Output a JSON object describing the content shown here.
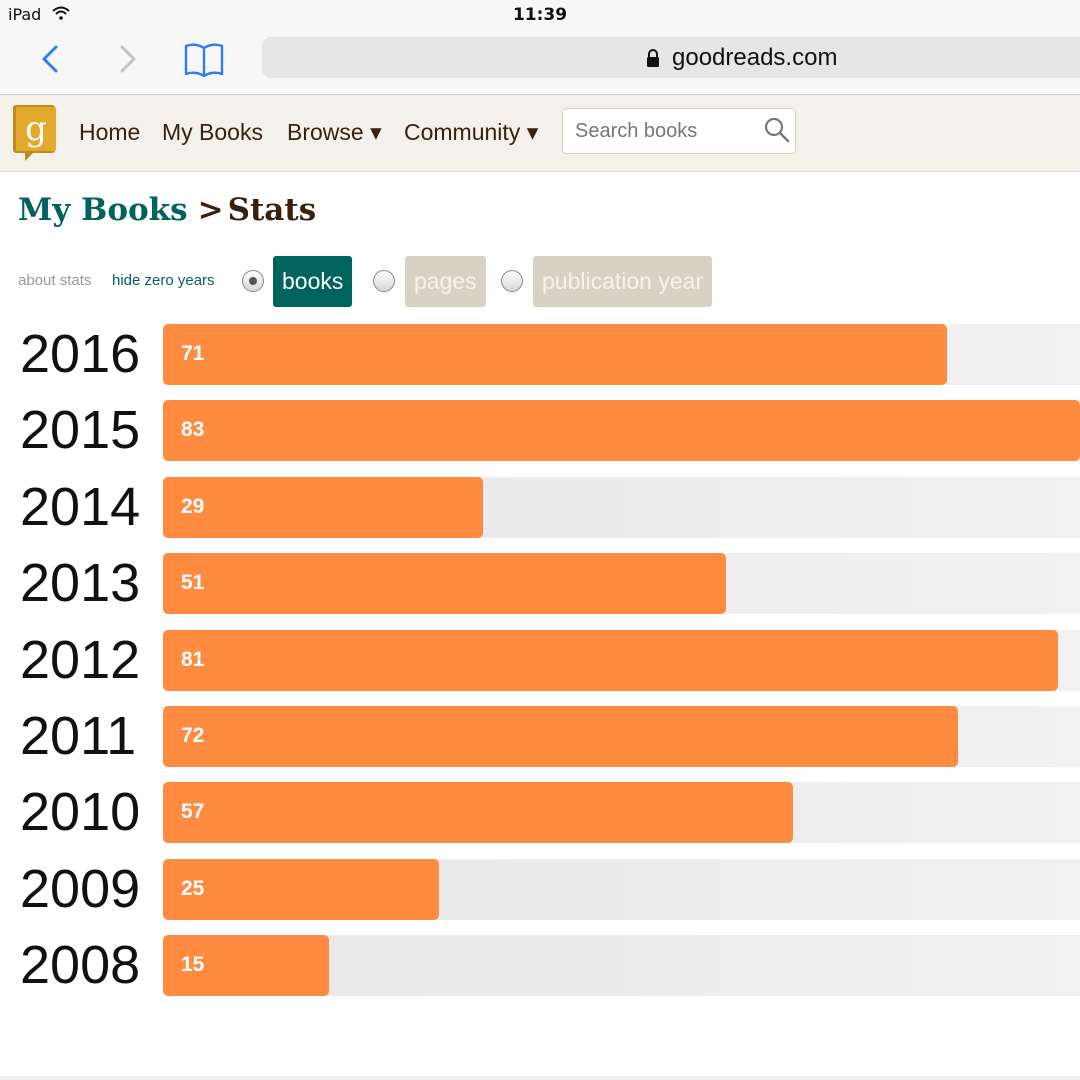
{
  "status_bar": {
    "device": "iPad",
    "time": "11:39"
  },
  "browser": {
    "domain": "goodreads.com"
  },
  "header": {
    "logo_letter": "g",
    "nav": {
      "home": "Home",
      "my_books": "My Books",
      "browse": "Browse ▾",
      "community": "Community ▾"
    },
    "search_placeholder": "Search books"
  },
  "breadcrumb": {
    "parent": "My Books",
    "separator": ">",
    "current": "Stats"
  },
  "options": {
    "about_stats": "about stats",
    "hide_zero_years": "hide zero years",
    "modes": [
      {
        "label": "books",
        "selected": true
      },
      {
        "label": "pages",
        "selected": false
      },
      {
        "label": "publication year",
        "selected": false
      }
    ]
  },
  "colors": {
    "bar": "#ff8b40",
    "track": "#e8e8e8",
    "accent_teal": "#00635d",
    "header_bg": "#f4f1ea",
    "text_brown": "#382110"
  },
  "icons": [
    "chevron-left-icon",
    "chevron-right-icon",
    "book-icon",
    "lock-icon",
    "search-icon",
    "wifi-icon",
    "goodreads-logo"
  ],
  "chart_data": {
    "type": "bar",
    "orientation": "horizontal",
    "categories": [
      "2016",
      "2015",
      "2014",
      "2013",
      "2012",
      "2011",
      "2010",
      "2009",
      "2008"
    ],
    "values": [
      71,
      83,
      29,
      51,
      81,
      72,
      57,
      25,
      15
    ],
    "xlim": [
      0,
      83
    ],
    "grid": false,
    "legend": "none"
  }
}
